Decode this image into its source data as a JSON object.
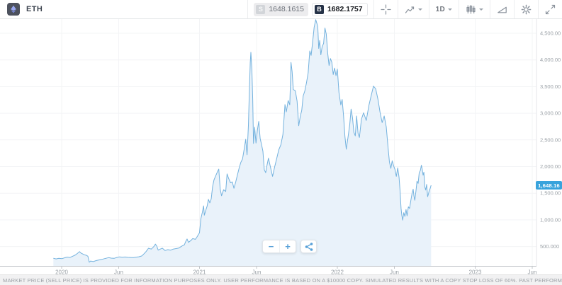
{
  "header": {
    "symbol": "ETH",
    "sell_label": "S",
    "sell_price": "1648.1615",
    "buy_label": "B",
    "buy_price": "1682.1757",
    "timeframe": "1D"
  },
  "icons": {
    "logo": "ethereum-icon",
    "crosshair": "crosshair-icon",
    "chart_type": "chart-type-icon",
    "caret": "chevron-down-icon",
    "candles": "candlesticks-icon",
    "draw": "drawings-icon",
    "settings": "gear-icon",
    "expand": "fullscreen-icon",
    "share": "share-icon"
  },
  "toolbar": {
    "zoom_out_label": "−",
    "zoom_in_label": "+"
  },
  "footer": {
    "disclaimer": "MARKET PRICE (SELL PRICE) IS PROVIDED FOR INFORMATION PURPOSES ONLY. USER PERFORMANCE IS BASED ON A $10000 COPY. SIMULATED RESULTS WITH A COPY STOP LOSS OF 60%. PAST PERFORMANCE IS NOT INDICATIVE OF FUTURE RESULTS."
  },
  "chart_data": {
    "type": "area",
    "title": "ETH price, 1D",
    "current_price_label": "1,648.16",
    "current_price": 1648.16,
    "xlim": [
      2019.94,
      2023.55
    ],
    "ylim": [
      140,
      4860
    ],
    "grid": true,
    "legend": "none",
    "style": {
      "line": "#74b2de",
      "fill": "#e9f2fa",
      "tag_bg": "#38a3dc"
    },
    "x_ticks": [
      {
        "t": 2020.0,
        "label": "2020"
      },
      {
        "t": 2020.414,
        "label": "Jun"
      },
      {
        "t": 2021.0,
        "label": "2021"
      },
      {
        "t": 2021.414,
        "label": "Jun"
      },
      {
        "t": 2022.0,
        "label": "2022"
      },
      {
        "t": 2022.414,
        "label": "Jun"
      },
      {
        "t": 2023.0,
        "label": "2023"
      },
      {
        "t": 2023.414,
        "label": "Jun"
      }
    ],
    "y_ticks": [
      {
        "v": 4500,
        "label": "4,500.00"
      },
      {
        "v": 4000,
        "label": "4,000.00"
      },
      {
        "v": 3500,
        "label": "3,500.00"
      },
      {
        "v": 3000,
        "label": "3,000.00"
      },
      {
        "v": 2500,
        "label": "2,500.00"
      },
      {
        "v": 2000,
        "label": "2,000.00"
      },
      {
        "v": 1500,
        "label": "1,500.00"
      },
      {
        "v": 1000,
        "label": "1,000.00"
      },
      {
        "v": 500,
        "label": "500.000"
      }
    ],
    "points": [
      [
        2019.94,
        280
      ],
      [
        2019.96,
        268
      ],
      [
        2019.98,
        278
      ],
      [
        2020.0,
        272
      ],
      [
        2020.02,
        288
      ],
      [
        2020.04,
        302
      ],
      [
        2020.06,
        295
      ],
      [
        2020.08,
        318
      ],
      [
        2020.1,
        342
      ],
      [
        2020.12,
        382
      ],
      [
        2020.13,
        405
      ],
      [
        2020.14,
        378
      ],
      [
        2020.16,
        352
      ],
      [
        2020.18,
        334
      ],
      [
        2020.19,
        318
      ],
      [
        2020.2,
        205
      ],
      [
        2020.21,
        228
      ],
      [
        2020.23,
        218
      ],
      [
        2020.25,
        236
      ],
      [
        2020.27,
        248
      ],
      [
        2020.29,
        258
      ],
      [
        2020.31,
        272
      ],
      [
        2020.33,
        285
      ],
      [
        2020.34,
        292
      ],
      [
        2020.36,
        283
      ],
      [
        2020.38,
        278
      ],
      [
        2020.4,
        295
      ],
      [
        2020.42,
        307
      ],
      [
        2020.44,
        299
      ],
      [
        2020.46,
        304
      ],
      [
        2020.48,
        297
      ],
      [
        2020.5,
        295
      ],
      [
        2020.52,
        292
      ],
      [
        2020.54,
        301
      ],
      [
        2020.56,
        308
      ],
      [
        2020.58,
        322
      ],
      [
        2020.59,
        345
      ],
      [
        2020.61,
        398
      ],
      [
        2020.62,
        432
      ],
      [
        2020.63,
        468
      ],
      [
        2020.65,
        452
      ],
      [
        2020.66,
        478
      ],
      [
        2020.67,
        502
      ],
      [
        2020.68,
        545
      ],
      [
        2020.69,
        508
      ],
      [
        2020.7,
        432
      ],
      [
        2020.72,
        458
      ],
      [
        2020.73,
        470
      ],
      [
        2020.75,
        425
      ],
      [
        2020.77,
        442
      ],
      [
        2020.79,
        432
      ],
      [
        2020.81,
        452
      ],
      [
        2020.83,
        462
      ],
      [
        2020.85,
        472
      ],
      [
        2020.87,
        505
      ],
      [
        2020.89,
        532
      ],
      [
        2020.9,
        595
      ],
      [
        2020.91,
        642
      ],
      [
        2020.92,
        578
      ],
      [
        2020.94,
        618
      ],
      [
        2020.95,
        648
      ],
      [
        2020.97,
        635
      ],
      [
        2020.98,
        672
      ],
      [
        2021.0,
        758
      ],
      [
        2021.01,
        1020
      ],
      [
        2021.02,
        1135
      ],
      [
        2021.03,
        1262
      ],
      [
        2021.035,
        1088
      ],
      [
        2021.045,
        1178
      ],
      [
        2021.055,
        1255
      ],
      [
        2021.065,
        1385
      ],
      [
        2021.075,
        1318
      ],
      [
        2021.085,
        1392
      ],
      [
        2021.095,
        1625
      ],
      [
        2021.105,
        1748
      ],
      [
        2021.115,
        1812
      ],
      [
        2021.13,
        1902
      ],
      [
        2021.14,
        1952
      ],
      [
        2021.15,
        1578
      ],
      [
        2021.16,
        1452
      ],
      [
        2021.175,
        1565
      ],
      [
        2021.19,
        1532
      ],
      [
        2021.2,
        1862
      ],
      [
        2021.212,
        1775
      ],
      [
        2021.225,
        1695
      ],
      [
        2021.238,
        1712
      ],
      [
        2021.25,
        1592
      ],
      [
        2021.262,
        1705
      ],
      [
        2021.275,
        1842
      ],
      [
        2021.288,
        1975
      ],
      [
        2021.3,
        2078
      ],
      [
        2021.312,
        2142
      ],
      [
        2021.325,
        2338
      ],
      [
        2021.335,
        2512
      ],
      [
        2021.345,
        2222
      ],
      [
        2021.355,
        2768
      ],
      [
        2021.362,
        3435
      ],
      [
        2021.368,
        3948
      ],
      [
        2021.373,
        4142
      ],
      [
        2021.38,
        3815
      ],
      [
        2021.386,
        3262
      ],
      [
        2021.392,
        2432
      ],
      [
        2021.4,
        2738
      ],
      [
        2021.41,
        2442
      ],
      [
        2021.42,
        2685
      ],
      [
        2021.43,
        2848
      ],
      [
        2021.44,
        2525
      ],
      [
        2021.45,
        2415
      ],
      [
        2021.46,
        2285
      ],
      [
        2021.47,
        1942
      ],
      [
        2021.48,
        1885
      ],
      [
        2021.49,
        2028
      ],
      [
        2021.5,
        2158
      ],
      [
        2021.515,
        1985
      ],
      [
        2021.53,
        1815
      ],
      [
        2021.545,
        1992
      ],
      [
        2021.56,
        2148
      ],
      [
        2021.575,
        2312
      ],
      [
        2021.59,
        2408
      ],
      [
        2021.605,
        2602
      ],
      [
        2021.62,
        3162
      ],
      [
        2021.63,
        3025
      ],
      [
        2021.643,
        3238
      ],
      [
        2021.655,
        3158
      ],
      [
        2021.664,
        3952
      ],
      [
        2021.672,
        3778
      ],
      [
        2021.68,
        3445
      ],
      [
        2021.695,
        3422
      ],
      [
        2021.708,
        3225
      ],
      [
        2021.72,
        2765
      ],
      [
        2021.73,
        2925
      ],
      [
        2021.742,
        3058
      ],
      [
        2021.752,
        3325
      ],
      [
        2021.764,
        3418
      ],
      [
        2021.776,
        3568
      ],
      [
        2021.788,
        3755
      ],
      [
        2021.8,
        4168
      ],
      [
        2021.81,
        4085
      ],
      [
        2021.82,
        4318
      ],
      [
        2021.832,
        4615
      ],
      [
        2021.843,
        4755
      ],
      [
        2021.852,
        4682
      ],
      [
        2021.858,
        4622
      ],
      [
        2021.865,
        4215
      ],
      [
        2021.872,
        4365
      ],
      [
        2021.88,
        4095
      ],
      [
        2021.89,
        4252
      ],
      [
        2021.9,
        4308
      ],
      [
        2021.91,
        4598
      ],
      [
        2021.92,
        4482
      ],
      [
        2021.93,
        4125
      ],
      [
        2021.94,
        3895
      ],
      [
        2021.95,
        4025
      ],
      [
        2021.96,
        3958
      ],
      [
        2021.97,
        3725
      ],
      [
        2021.98,
        3848
      ],
      [
        2021.99,
        3705
      ],
      [
        2022.0,
        3828
      ],
      [
        2022.012,
        3385
      ],
      [
        2022.025,
        3155
      ],
      [
        2022.035,
        3258
      ],
      [
        2022.045,
        2945
      ],
      [
        2022.055,
        2565
      ],
      [
        2022.065,
        2325
      ],
      [
        2022.078,
        2562
      ],
      [
        2022.09,
        2788
      ],
      [
        2022.1,
        3078
      ],
      [
        2022.11,
        2915
      ],
      [
        2022.12,
        2645
      ],
      [
        2022.13,
        2575
      ],
      [
        2022.14,
        2948
      ],
      [
        2022.15,
        2625
      ],
      [
        2022.16,
        2545
      ],
      [
        2022.175,
        2888
      ],
      [
        2022.19,
        3008
      ],
      [
        2022.21,
        2865
      ],
      [
        2022.23,
        3158
      ],
      [
        2022.25,
        3378
      ],
      [
        2022.262,
        3508
      ],
      [
        2022.278,
        3458
      ],
      [
        2022.295,
        3255
      ],
      [
        2022.31,
        3015
      ],
      [
        2022.325,
        2825
      ],
      [
        2022.34,
        2948
      ],
      [
        2022.355,
        2745
      ],
      [
        2022.368,
        2352
      ],
      [
        2022.378,
        2085
      ],
      [
        2022.388,
        1965
      ],
      [
        2022.398,
        2108
      ],
      [
        2022.408,
        2015
      ],
      [
        2022.418,
        1945
      ],
      [
        2022.428,
        1815
      ],
      [
        2022.438,
        1975
      ],
      [
        2022.448,
        1795
      ],
      [
        2022.455,
        1545
      ],
      [
        2022.462,
        1215
      ],
      [
        2022.468,
        1082
      ],
      [
        2022.474,
        995
      ],
      [
        2022.482,
        1135
      ],
      [
        2022.49,
        1065
      ],
      [
        2022.498,
        1195
      ],
      [
        2022.506,
        1075
      ],
      [
        2022.515,
        1245
      ],
      [
        2022.524,
        1215
      ],
      [
        2022.533,
        1365
      ],
      [
        2022.542,
        1495
      ],
      [
        2022.55,
        1575
      ],
      [
        2022.556,
        1445
      ],
      [
        2022.562,
        1368
      ],
      [
        2022.57,
        1538
      ],
      [
        2022.578,
        1725
      ],
      [
        2022.586,
        1685
      ],
      [
        2022.594,
        1882
      ],
      [
        2022.602,
        1925
      ],
      [
        2022.61,
        2025
      ],
      [
        2022.616,
        1945
      ],
      [
        2022.622,
        1838
      ],
      [
        2022.628,
        1895
      ],
      [
        2022.634,
        1625
      ],
      [
        2022.641,
        1558
      ],
      [
        2022.648,
        1665
      ],
      [
        2022.655,
        1435
      ],
      [
        2022.661,
        1488
      ],
      [
        2022.667,
        1555
      ],
      [
        2022.673,
        1588
      ],
      [
        2022.68,
        1648.16
      ]
    ]
  }
}
